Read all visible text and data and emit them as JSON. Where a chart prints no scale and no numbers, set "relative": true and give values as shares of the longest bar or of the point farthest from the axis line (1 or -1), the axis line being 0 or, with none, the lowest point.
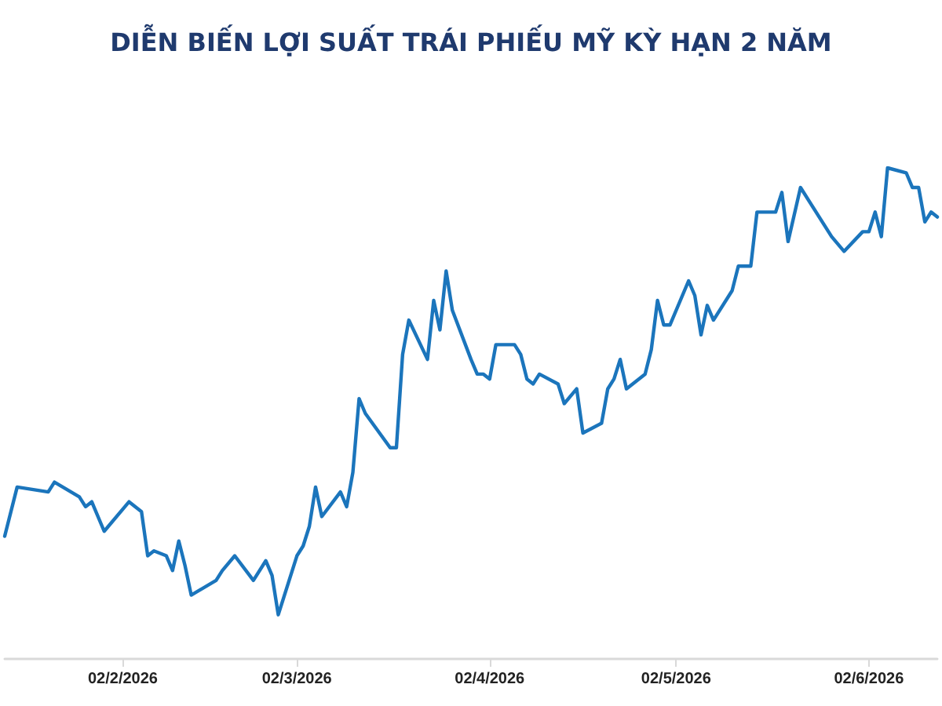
{
  "chart_data": {
    "type": "line",
    "title": "DIỄN BIẾN LỢI SUẤT TRÁI PHIẾU MỸ KỲ HẠN 2 NĂM",
    "relative": true,
    "marker": "none",
    "grid": false,
    "tick_labels": "x",
    "xlim": [
      "2026-01-14",
      "2026-06-13"
    ],
    "xticks": [
      {
        "value": "2026-02-02",
        "label": "02/2/2026"
      },
      {
        "value": "2026-03-02",
        "label": "02/3/2026"
      },
      {
        "value": "2026-04-02",
        "label": "02/4/2026"
      },
      {
        "value": "2026-05-02",
        "label": "02/5/2026"
      },
      {
        "value": "2026-06-02",
        "label": "02/6/2026"
      }
    ],
    "series": [
      {
        "color": "#1b75bc",
        "x": [
          "2026-01-14",
          "2026-01-16",
          "2026-01-21",
          "2026-01-22",
          "2026-01-26",
          "2026-01-27",
          "2026-01-28",
          "2026-01-30",
          "2026-02-03",
          "2026-02-04",
          "2026-02-05",
          "2026-02-06",
          "2026-02-07",
          "2026-02-09",
          "2026-02-10",
          "2026-02-11",
          "2026-02-12",
          "2026-02-13",
          "2026-02-17",
          "2026-02-18",
          "2026-02-20",
          "2026-02-23",
          "2026-02-25",
          "2026-02-26",
          "2026-02-27",
          "2026-03-02",
          "2026-03-03",
          "2026-03-04",
          "2026-03-05",
          "2026-03-06",
          "2026-03-09",
          "2026-03-10",
          "2026-03-11",
          "2026-03-12",
          "2026-03-13",
          "2026-03-17",
          "2026-03-18",
          "2026-03-19",
          "2026-03-20",
          "2026-03-23",
          "2026-03-24",
          "2026-03-25",
          "2026-03-26",
          "2026-03-27",
          "2026-03-30",
          "2026-03-31",
          "2026-04-01",
          "2026-04-02",
          "2026-04-03",
          "2026-04-06",
          "2026-04-07",
          "2026-04-08",
          "2026-04-09",
          "2026-04-10",
          "2026-04-13",
          "2026-04-14",
          "2026-04-16",
          "2026-04-17",
          "2026-04-20",
          "2026-04-21",
          "2026-04-22",
          "2026-04-23",
          "2026-04-24",
          "2026-04-27",
          "2026-04-28",
          "2026-04-29",
          "2026-04-30",
          "2026-05-01",
          "2026-05-04",
          "2026-05-05",
          "2026-05-06",
          "2026-05-07",
          "2026-05-08",
          "2026-05-11",
          "2026-05-12",
          "2026-05-13",
          "2026-05-14",
          "2026-05-15",
          "2026-05-18",
          "2026-05-19",
          "2026-05-20",
          "2026-05-22",
          "2026-05-27",
          "2026-05-29",
          "2026-06-01",
          "2026-06-02",
          "2026-06-03",
          "2026-06-04",
          "2026-06-05",
          "2026-06-08",
          "2026-06-09",
          "2026-06-10",
          "2026-06-11",
          "2026-06-12",
          "2026-06-13"
        ],
        "values": [
          0.25,
          0.35,
          0.34,
          0.36,
          0.33,
          0.31,
          0.32,
          0.26,
          0.32,
          0.31,
          0.3,
          0.21,
          0.22,
          0.21,
          0.18,
          0.24,
          0.19,
          0.13,
          0.16,
          0.18,
          0.21,
          0.16,
          0.2,
          0.17,
          0.09,
          0.21,
          0.23,
          0.27,
          0.35,
          0.29,
          0.34,
          0.31,
          0.38,
          0.53,
          0.5,
          0.43,
          0.43,
          0.62,
          0.69,
          0.61,
          0.73,
          0.67,
          0.79,
          0.71,
          0.61,
          0.58,
          0.58,
          0.57,
          0.64,
          0.64,
          0.62,
          0.57,
          0.56,
          0.58,
          0.56,
          0.52,
          0.55,
          0.46,
          0.48,
          0.55,
          0.57,
          0.61,
          0.55,
          0.58,
          0.63,
          0.73,
          0.68,
          0.68,
          0.77,
          0.74,
          0.66,
          0.72,
          0.69,
          0.75,
          0.8,
          0.8,
          0.8,
          0.91,
          0.91,
          0.95,
          0.85,
          0.96,
          0.86,
          0.83,
          0.87,
          0.87,
          0.91,
          0.86,
          1.0,
          0.99,
          0.96,
          0.96,
          0.89,
          0.91,
          0.9
        ]
      }
    ]
  }
}
